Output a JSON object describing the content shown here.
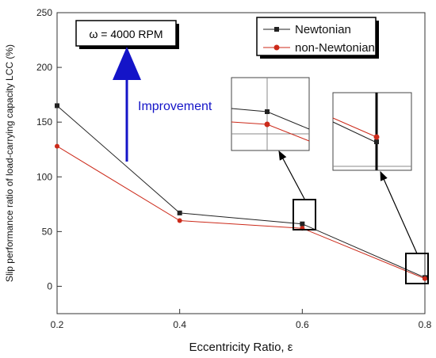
{
  "chart_data": {
    "type": "line",
    "xlabel": "Eccentricity Ratio, ε",
    "ylabel": "Slip performance ratio of load-carrying capacity LCC (%)",
    "xlim": [
      0.2,
      0.8
    ],
    "ylim": [
      -25,
      250
    ],
    "x_ticks": [
      "0.2",
      "0.4",
      "0.6",
      "0.8"
    ],
    "y_ticks": [
      "0",
      "50",
      "100",
      "150",
      "200",
      "250"
    ],
    "x": [
      0.2,
      0.4,
      0.6,
      0.8
    ],
    "series": [
      {
        "name": "Newtonian",
        "values": [
          165,
          67,
          57,
          8
        ],
        "color": "#222222",
        "marker": "square"
      },
      {
        "name": "non-Newtonian",
        "values": [
          128,
          60,
          53,
          7
        ],
        "color": "#cc2a1a",
        "marker": "circle"
      }
    ],
    "legend_position": "top-right",
    "annotations": {
      "speed_box": "ω = 4000 RPM",
      "improvement_label": "Improvement",
      "improvement_color": "#1414c8"
    }
  }
}
